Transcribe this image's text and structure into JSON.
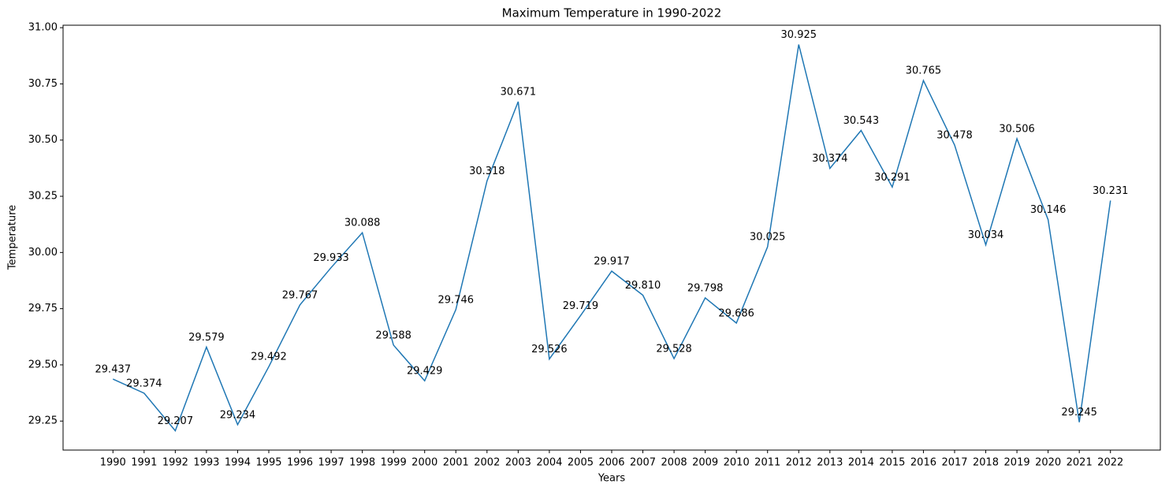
{
  "chart_data": {
    "type": "line",
    "title": "Maximum Temperature in 1990-2022",
    "x_label": "Years",
    "y_label": "Temperature",
    "x": [
      1990,
      1991,
      1992,
      1993,
      1994,
      1995,
      1996,
      1997,
      1998,
      1999,
      2000,
      2001,
      2002,
      2003,
      2004,
      2005,
      2006,
      2007,
      2008,
      2009,
      2010,
      2011,
      2012,
      2013,
      2014,
      2015,
      2016,
      2017,
      2018,
      2019,
      2020,
      2021,
      2022
    ],
    "series": [
      {
        "name": "Temperature",
        "color": "#1f77b4",
        "values": [
          29.437,
          29.374,
          29.207,
          29.579,
          29.234,
          29.492,
          29.767,
          29.933,
          30.088,
          29.588,
          29.429,
          29.746,
          30.318,
          30.671,
          29.526,
          29.719,
          29.917,
          29.81,
          29.528,
          29.798,
          29.686,
          30.025,
          30.925,
          30.374,
          30.543,
          30.291,
          30.765,
          30.478,
          30.034,
          30.506,
          30.146,
          29.245,
          30.231
        ],
        "value_labels": [
          "29.437",
          "29.374",
          "29.207",
          "29.579",
          "29.234",
          "29.492",
          "29.767",
          "29.933",
          "30.088",
          "29.588",
          "29.429",
          "29.746",
          "30.318",
          "30.671",
          "29.526",
          "29.719",
          "29.917",
          "29.810",
          "29.528",
          "29.798",
          "29.686",
          "30.025",
          "30.925",
          "30.374",
          "30.543",
          "30.291",
          "30.765",
          "30.478",
          "30.034",
          "30.506",
          "30.146",
          "29.245",
          "30.231"
        ]
      }
    ],
    "xlim": [
      1988.4,
      2023.6
    ],
    "xticks": [
      1990,
      1991,
      1992,
      1993,
      1994,
      1995,
      1996,
      1997,
      1998,
      1999,
      2000,
      2001,
      2002,
      2003,
      2004,
      2005,
      2006,
      2007,
      2008,
      2009,
      2010,
      2011,
      2012,
      2013,
      2014,
      2015,
      2016,
      2017,
      2018,
      2019,
      2020,
      2021,
      2022
    ],
    "ylim": [
      29.121,
      31.011
    ],
    "yticks": [
      {
        "value": 29.25,
        "label": "29.25"
      },
      {
        "value": 29.5,
        "label": "29.50"
      },
      {
        "value": 29.75,
        "label": "29.75"
      },
      {
        "value": 30,
        "label": "30.00"
      },
      {
        "value": 30.25,
        "label": "30.25"
      },
      {
        "value": 30.5,
        "label": "30.50"
      },
      {
        "value": 30.75,
        "label": "30.75"
      },
      {
        "value": 31,
        "label": "31.00"
      }
    ]
  }
}
